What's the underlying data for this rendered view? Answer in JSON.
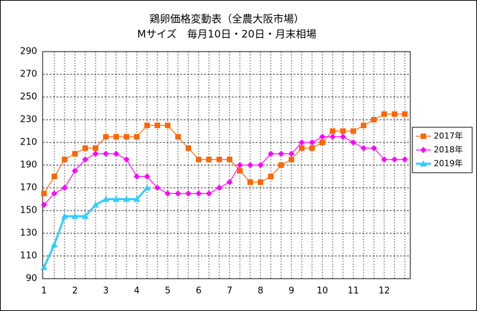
{
  "chart_data": {
    "type": "line",
    "title": "鶏卵価格変動表（全農大阪市場）",
    "subtitle": "Mサイズ　毎月10日・20日・月末相場",
    "categories": [
      "1",
      null,
      null,
      "2",
      null,
      null,
      "3",
      null,
      null,
      "4",
      null,
      null,
      "5",
      null,
      null,
      "6",
      null,
      null,
      "7",
      null,
      null,
      "8",
      null,
      null,
      "9",
      null,
      null,
      "10",
      null,
      null,
      "11",
      null,
      null,
      "12",
      null,
      null
    ],
    "series": [
      {
        "name": "2017年",
        "color": "#ff6600",
        "marker": "square",
        "values": [
          165,
          180,
          195,
          200,
          205,
          205,
          215,
          215,
          215,
          215,
          225,
          225,
          225,
          215,
          205,
          195,
          195,
          195,
          195,
          185,
          175,
          175,
          180,
          190,
          195,
          205,
          205,
          210,
          220,
          220,
          220,
          225,
          230,
          235,
          235,
          235
        ]
      },
      {
        "name": "2018年",
        "color": "#ff00ff",
        "marker": "diamond",
        "values": [
          155,
          165,
          170,
          185,
          195,
          200,
          200,
          200,
          195,
          180,
          180,
          170,
          165,
          165,
          165,
          165,
          165,
          170,
          175,
          190,
          190,
          190,
          200,
          200,
          200,
          210,
          210,
          215,
          215,
          215,
          210,
          205,
          205,
          195,
          195,
          195
        ]
      },
      {
        "name": "2019年",
        "color": "#33ccff",
        "marker": "triangle",
        "values": [
          100,
          120,
          145,
          145,
          145,
          155,
          160,
          160,
          160,
          160,
          170,
          null,
          null,
          null,
          null,
          null,
          null,
          null,
          null,
          null,
          null,
          null,
          null,
          null,
          null,
          null,
          null,
          null,
          null,
          null,
          null,
          null,
          null,
          null,
          null,
          null
        ]
      }
    ],
    "ylim": [
      90,
      290
    ],
    "yticks": [
      90,
      110,
      130,
      150,
      170,
      190,
      210,
      230,
      250,
      270,
      290
    ],
    "grid": true,
    "legend": "right"
  }
}
